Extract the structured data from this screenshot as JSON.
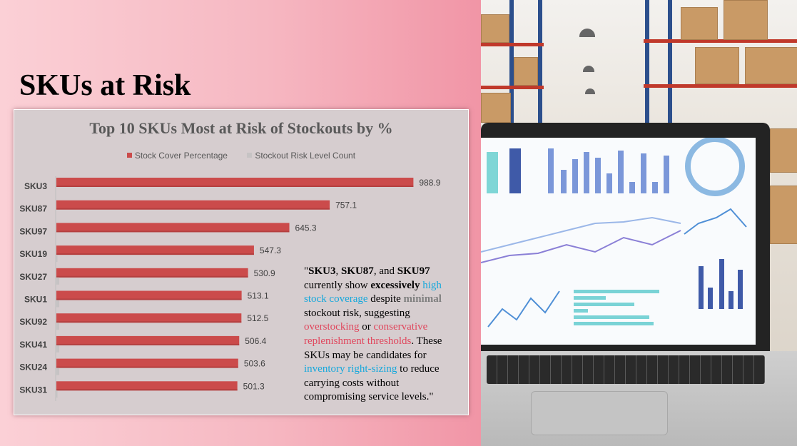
{
  "slide": {
    "title": "SKUs at Risk"
  },
  "commentary": {
    "parts": [
      {
        "text": "\"",
        "style": "plain"
      },
      {
        "text": "SKU3",
        "style": "bold"
      },
      {
        "text": ", ",
        "style": "plain"
      },
      {
        "text": "SKU87",
        "style": "bold"
      },
      {
        "text": ", and ",
        "style": "plain"
      },
      {
        "text": "SKU97",
        "style": "bold"
      },
      {
        "text": " currently show ",
        "style": "plain"
      },
      {
        "text": "excessively",
        "style": "bold"
      },
      {
        "text": " ",
        "style": "plain"
      },
      {
        "text": "high stock coverage",
        "style": "blue"
      },
      {
        "text": " despite ",
        "style": "plain"
      },
      {
        "text": "minimal",
        "style": "grey"
      },
      {
        "text": " stockout risk, suggesting ",
        "style": "plain"
      },
      {
        "text": "overstocking",
        "style": "red"
      },
      {
        "text": " or ",
        "style": "plain"
      },
      {
        "text": "conservative replenishment thresholds",
        "style": "red"
      },
      {
        "text": ". These SKUs may be candidates for ",
        "style": "plain"
      },
      {
        "text": "inventory right-sizing",
        "style": "blue"
      },
      {
        "text": " to reduce carrying costs without compromising service levels.\"",
        "style": "plain"
      }
    ]
  },
  "chart_data": {
    "type": "bar",
    "orientation": "horizontal",
    "title": "Top 10 SKUs Most at Risk of Stockouts by %",
    "categories": [
      "SKU3",
      "SKU87",
      "SKU97",
      "SKU19",
      "SKU27",
      "SKU1",
      "SKU92",
      "SKU41",
      "SKU24",
      "SKU31"
    ],
    "series": [
      {
        "name": "Stock Cover Percentage",
        "color": "#cb4b4b",
        "values": [
          988.9,
          757.1,
          645.3,
          547.3,
          530.9,
          513.1,
          512.5,
          506.4,
          503.6,
          501.3
        ],
        "show_labels": true
      },
      {
        "name": "Stockout Risk Level Count",
        "color": "#c6c3c4",
        "values": [
          0,
          0,
          0,
          3,
          8,
          8,
          8,
          8,
          8,
          3
        ],
        "show_labels": false
      }
    ],
    "xlim": [
      0,
      1000
    ],
    "grid": false,
    "legend": "top"
  },
  "colors": {
    "background_left": "#f6b8c2",
    "chart_background": "#d6cdcf",
    "accent_red": "#cb4b4b",
    "highlight_blue": "#16a8dc",
    "highlight_red": "#e0475d"
  },
  "image": {
    "icon": "laptop-dashboard-warehouse-photo"
  }
}
